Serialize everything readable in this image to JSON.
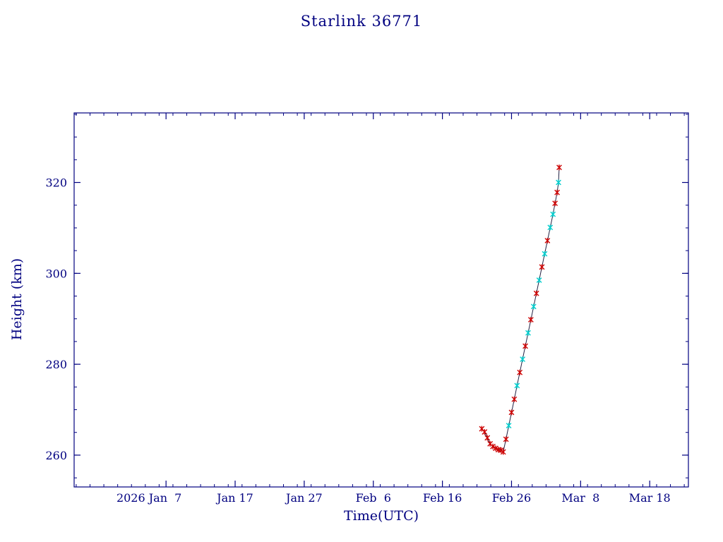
{
  "chart_data": {
    "type": "line+scatter",
    "title": "Starlink 36771",
    "xlabel": "Time(UTC)",
    "ylabel": "Height (km)",
    "x_unit": "day-of-year 2026",
    "xlim": [
      -6.3,
      82.6
    ],
    "ylim": [
      253,
      335.3
    ],
    "x_ticks": [
      {
        "day": 7,
        "label": "2026 Jan  7",
        "align_offset": -24
      },
      {
        "day": 17,
        "label": "Jan 17",
        "align_offset": 0
      },
      {
        "day": 27,
        "label": "Jan 27",
        "align_offset": 0
      },
      {
        "day": 37,
        "label": "Feb  6",
        "align_offset": 0
      },
      {
        "day": 47,
        "label": "Feb 16",
        "align_offset": 0
      },
      {
        "day": 57,
        "label": "Feb 26",
        "align_offset": 0
      },
      {
        "day": 67,
        "label": "Mar  8",
        "align_offset": 0
      },
      {
        "day": 77,
        "label": "Mar 18",
        "align_offset": 0
      }
    ],
    "x_minor_step": 2,
    "y_ticks": [
      {
        "value": 260,
        "label": "260"
      },
      {
        "value": 280,
        "label": "280"
      },
      {
        "value": 300,
        "label": "300"
      },
      {
        "value": 320,
        "label": "320"
      }
    ],
    "y_minor_step": 5,
    "grid": false,
    "legend": "none",
    "colors": {
      "text": "#000080",
      "frame": "#000080",
      "line": "#222244",
      "red_marker": "#cc0000",
      "cyan_marker": "#00cdcd"
    },
    "points": [
      {
        "day": 52.7,
        "height": 265.8,
        "marker": "red"
      },
      {
        "day": 53.1,
        "height": 265.1,
        "marker": "red"
      },
      {
        "day": 53.5,
        "height": 263.8,
        "marker": "red"
      },
      {
        "day": 53.9,
        "height": 262.5,
        "marker": "red"
      },
      {
        "day": 54.3,
        "height": 261.9,
        "marker": "red"
      },
      {
        "day": 54.7,
        "height": 261.5,
        "marker": "red"
      },
      {
        "day": 55.1,
        "height": 261.2,
        "marker": "red"
      },
      {
        "day": 55.5,
        "height": 261.1,
        "marker": "red"
      },
      {
        "day": 55.8,
        "height": 260.7,
        "marker": "red"
      },
      {
        "day": 56.2,
        "height": 263.5,
        "marker": "red"
      },
      {
        "day": 56.6,
        "height": 266.5,
        "marker": "cyan"
      },
      {
        "day": 57.0,
        "height": 269.4,
        "marker": "red"
      },
      {
        "day": 57.4,
        "height": 272.3,
        "marker": "red"
      },
      {
        "day": 57.8,
        "height": 275.3,
        "marker": "cyan"
      },
      {
        "day": 58.2,
        "height": 278.2,
        "marker": "red"
      },
      {
        "day": 58.6,
        "height": 281.1,
        "marker": "cyan"
      },
      {
        "day": 59.0,
        "height": 284.0,
        "marker": "red"
      },
      {
        "day": 59.4,
        "height": 286.9,
        "marker": "cyan"
      },
      {
        "day": 59.8,
        "height": 289.8,
        "marker": "red"
      },
      {
        "day": 60.2,
        "height": 292.7,
        "marker": "cyan"
      },
      {
        "day": 60.6,
        "height": 295.6,
        "marker": "red"
      },
      {
        "day": 61.0,
        "height": 298.5,
        "marker": "cyan"
      },
      {
        "day": 61.4,
        "height": 301.4,
        "marker": "red"
      },
      {
        "day": 61.8,
        "height": 304.3,
        "marker": "cyan"
      },
      {
        "day": 62.2,
        "height": 307.2,
        "marker": "red"
      },
      {
        "day": 62.6,
        "height": 310.1,
        "marker": "cyan"
      },
      {
        "day": 63.0,
        "height": 313.0,
        "marker": "cyan"
      },
      {
        "day": 63.3,
        "height": 315.4,
        "marker": "red"
      },
      {
        "day": 63.6,
        "height": 317.8,
        "marker": "red"
      },
      {
        "day": 63.8,
        "height": 320.0,
        "marker": "cyan"
      },
      {
        "day": 63.9,
        "height": 323.3,
        "marker": "red"
      }
    ]
  }
}
